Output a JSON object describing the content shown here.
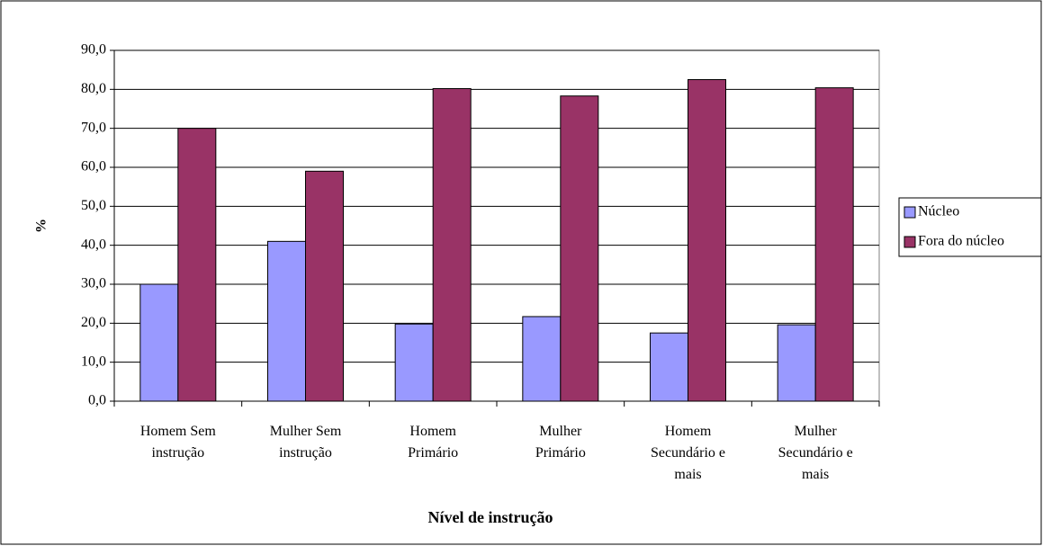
{
  "chart_data": {
    "type": "bar",
    "x_label": "Nível de instrução",
    "y_label": "%",
    "categories": [
      "Homem Sem instrução",
      "Mulher Sem instrução",
      "Homem Primário",
      "Mulher Primário",
      "Homem Secundário e mais",
      "Mulher Secundário e mais"
    ],
    "series": [
      {
        "name": "Núcleo",
        "color": "#9999ff",
        "values": [
          30.0,
          41.0,
          19.8,
          21.7,
          17.5,
          19.6
        ]
      },
      {
        "name": "Fora do núcleo",
        "color": "#993366",
        "values": [
          70.0,
          59.0,
          80.2,
          78.3,
          82.5,
          80.4
        ]
      }
    ],
    "ylim": [
      0,
      90
    ],
    "yticks": [
      {
        "value": 0,
        "label": "0,0"
      },
      {
        "value": 10,
        "label": "10,0"
      },
      {
        "value": 20,
        "label": "20,0"
      },
      {
        "value": 30,
        "label": "30,0"
      },
      {
        "value": 40,
        "label": "40,0"
      },
      {
        "value": 50,
        "label": "50,0"
      },
      {
        "value": 60,
        "label": "60,0"
      },
      {
        "value": 70,
        "label": "70,0"
      },
      {
        "value": 80,
        "label": "80,0"
      },
      {
        "value": 90,
        "label": "90,0"
      }
    ],
    "grid": true,
    "legend": "right"
  }
}
